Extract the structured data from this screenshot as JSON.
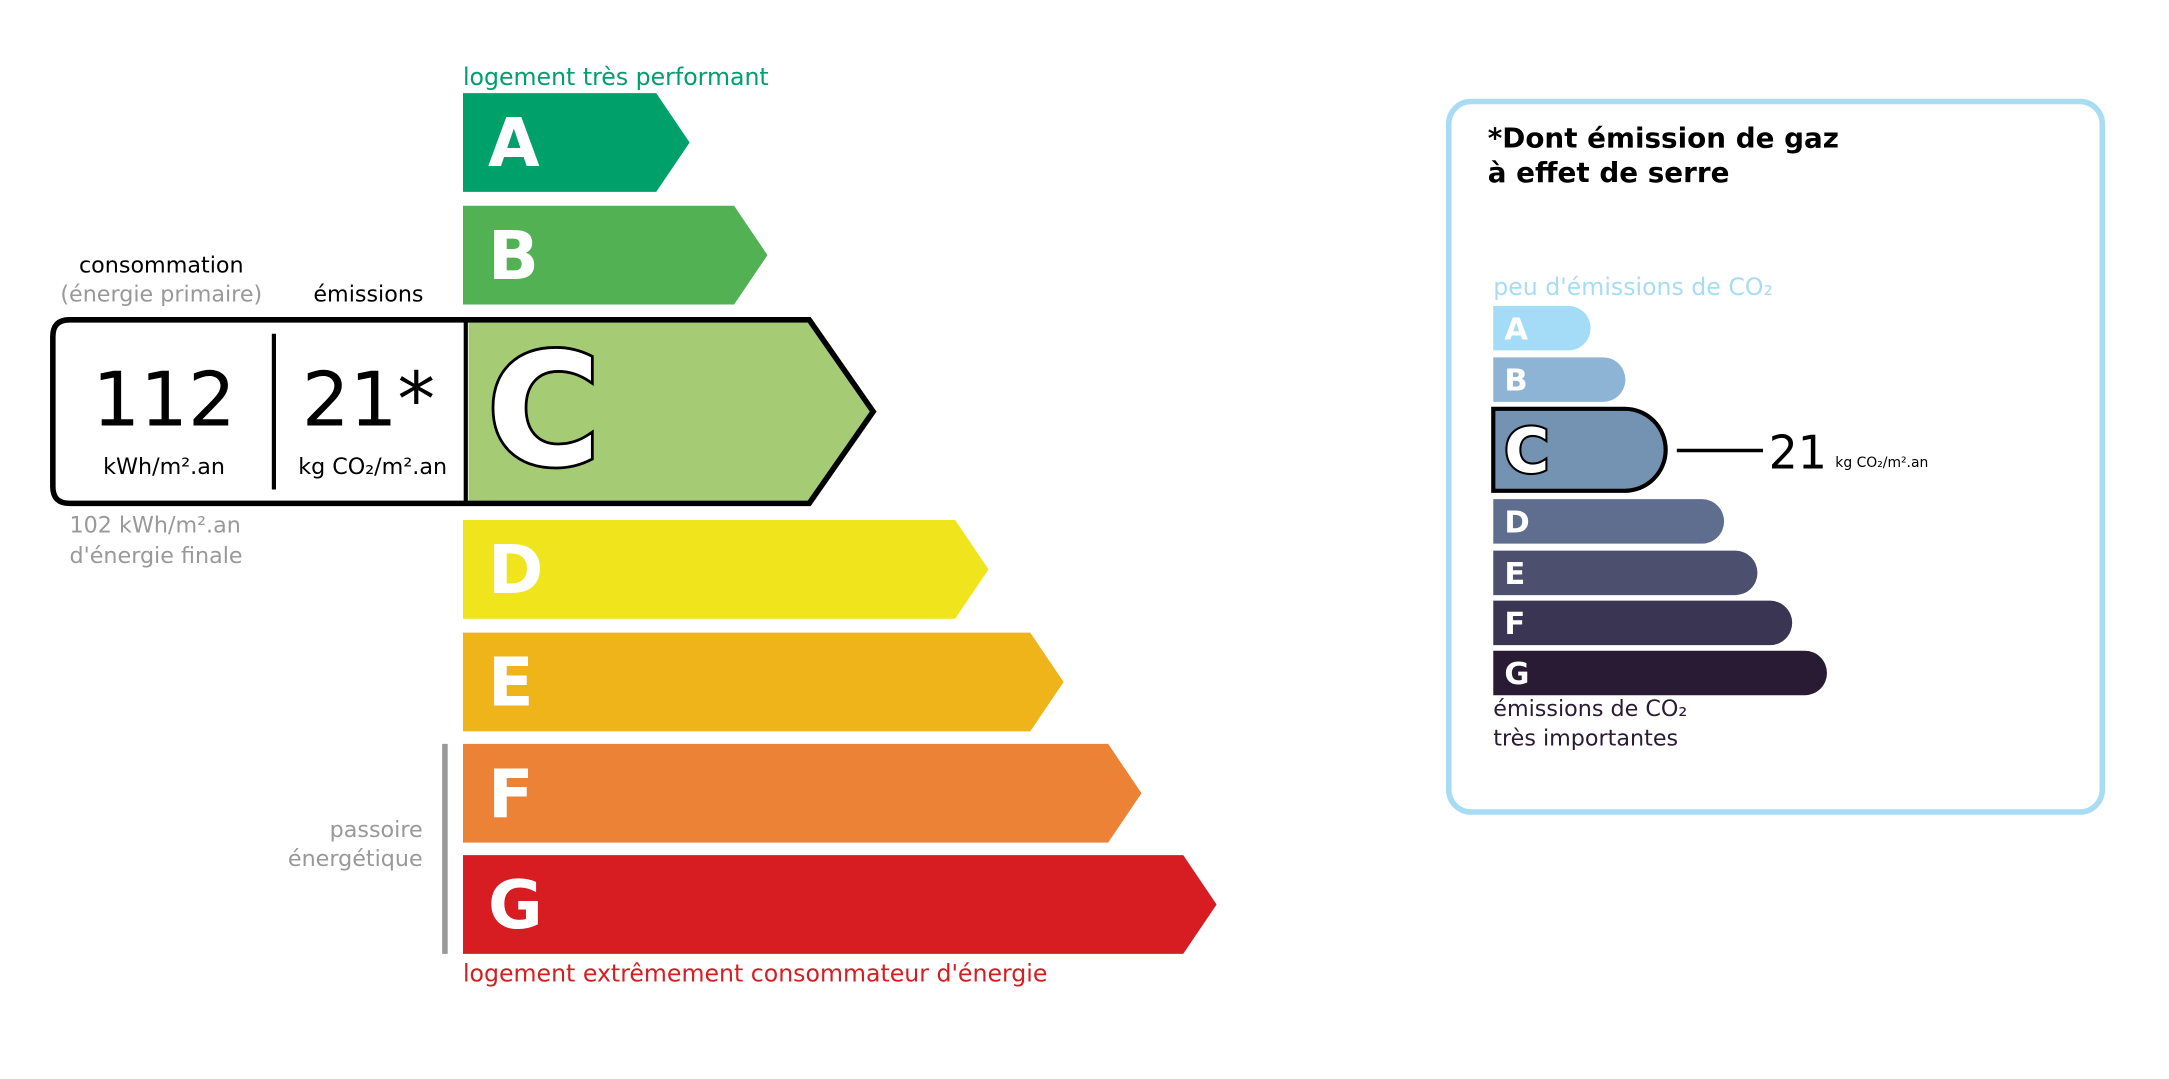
{
  "energy": {
    "top_label": "logement très performant",
    "bottom_label": "logement extrêmement consommateur d'énergie",
    "consumption_title": "consommation",
    "consumption_subtitle": "(énergie primaire)",
    "emissions_title": "émissions",
    "consumption_value": "112",
    "consumption_unit": "kWh/m².an",
    "emissions_value": "21*",
    "emissions_unit": "kg CO₂/m².an",
    "final_energy_line1": "102 kWh/m².an",
    "final_energy_line2": "d'énergie finale",
    "passoire_line1": "passoire",
    "passoire_line2": "énergétique",
    "current_class": "C",
    "classes": [
      {
        "letter": "A",
        "color": "#00a06b"
      },
      {
        "letter": "B",
        "color": "#52b153"
      },
      {
        "letter": "C",
        "color": "#a5cc74"
      },
      {
        "letter": "D",
        "color": "#f0e51c"
      },
      {
        "letter": "E",
        "color": "#efb41a"
      },
      {
        "letter": "F",
        "color": "#eb8235"
      },
      {
        "letter": "G",
        "color": "#d71d21"
      }
    ],
    "top_label_color": "#00a06b",
    "bottom_label_color": "#d71d21"
  },
  "ges": {
    "title_line1": "*Dont émission de gaz",
    "title_line2": "à effet de serre",
    "top_label": "peu d'émissions de CO₂",
    "bottom_label_line1": "émissions de CO₂",
    "bottom_label_line2": "très importantes",
    "value": "21",
    "unit": "kg CO₂/m².an",
    "current_class": "C",
    "border_color": "#a8dcf5",
    "classes": [
      {
        "letter": "A",
        "color": "#a4dbf7"
      },
      {
        "letter": "B",
        "color": "#8db4d4"
      },
      {
        "letter": "C",
        "color": "#7493b3"
      },
      {
        "letter": "D",
        "color": "#5f6d8e"
      },
      {
        "letter": "E",
        "color": "#4c4f6e"
      },
      {
        "letter": "F",
        "color": "#393552"
      },
      {
        "letter": "G",
        "color": "#291b33"
      }
    ]
  }
}
